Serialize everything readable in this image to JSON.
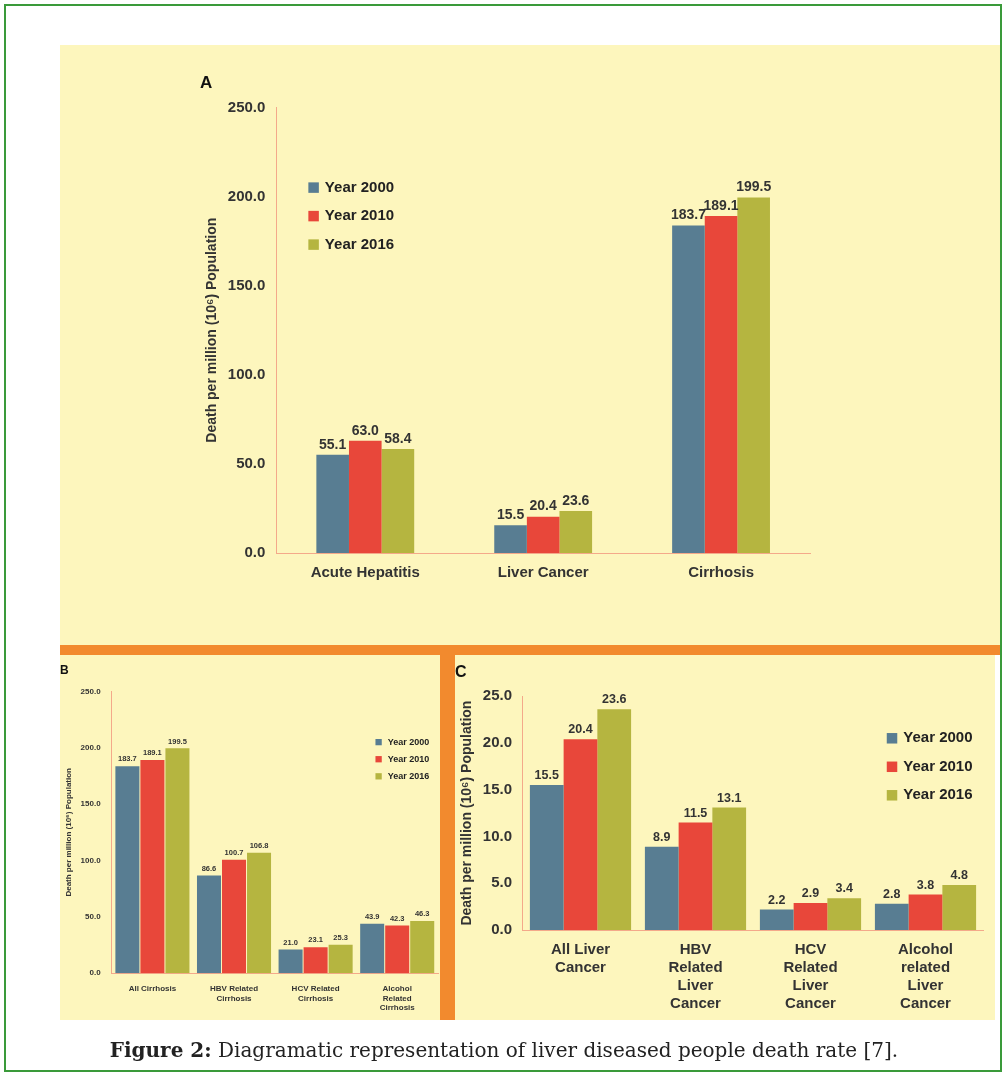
{
  "chart_data": [
    {
      "type": "bar",
      "title": "A",
      "ylabel": "Death per million (10⁶) Population",
      "categories": [
        "Acute Hepatitis",
        "Liver Cancer",
        "Cirrhosis"
      ],
      "series": [
        {
          "name": "Year 2000",
          "color": "#587d92",
          "values": [
            55.1,
            15.5,
            183.7
          ],
          "value_labels": [
            "55.1",
            "15.5",
            "183.7"
          ]
        },
        {
          "name": "Year 2010",
          "color": "#e8473a",
          "values": [
            63.0,
            20.4,
            189.1
          ],
          "value_labels": [
            "63.0",
            "20.4",
            "189.1"
          ]
        },
        {
          "name": "Year 2016",
          "color": "#b5b540",
          "values": [
            58.4,
            23.6,
            199.5
          ],
          "value_labels": [
            "58.4",
            "23.6",
            "199.5"
          ]
        }
      ],
      "ylim": [
        0,
        250
      ],
      "yticks": [
        {
          "value": 0,
          "label": "0.0"
        },
        {
          "value": 50,
          "label": "50.0"
        },
        {
          "value": 100,
          "label": "100.0"
        },
        {
          "value": 150,
          "label": "150.0"
        },
        {
          "value": 200,
          "label": "200.0"
        },
        {
          "value": 250,
          "label": "250.0"
        }
      ],
      "grid": false,
      "legend": "top left"
    },
    {
      "type": "bar",
      "title": "B",
      "ylabel": "Death per million (10⁶) Population",
      "categories": [
        "All Cirrhosis",
        "HBV Related Cirrhosis",
        "HCV Related Cirrhosis",
        "Alcohol Related Cirrhosis"
      ],
      "series": [
        {
          "name": "Year 2000",
          "color": "#587d92",
          "values": [
            183.7,
            86.6,
            21.0,
            43.9
          ],
          "value_labels": [
            "183.7",
            "86.6",
            "21.0",
            "43.9"
          ]
        },
        {
          "name": "Year 2010",
          "color": "#e8473a",
          "values": [
            189.1,
            100.7,
            23.1,
            42.3
          ],
          "value_labels": [
            "189.1",
            "100.7",
            "23.1",
            "42.3"
          ]
        },
        {
          "name": "Year 2016",
          "color": "#b5b540",
          "values": [
            199.5,
            106.8,
            25.3,
            46.3
          ],
          "value_labels": [
            "199.5",
            "106.8",
            "25.3",
            "46.3"
          ]
        }
      ],
      "ylim": [
        0,
        250
      ],
      "yticks": [
        {
          "value": 0,
          "label": "0.0"
        },
        {
          "value": 50,
          "label": "50.0"
        },
        {
          "value": 100,
          "label": "100.0"
        },
        {
          "value": 150,
          "label": "150.0"
        },
        {
          "value": 200,
          "label": "200.0"
        },
        {
          "value": 250,
          "label": "250.0"
        }
      ],
      "grid": false,
      "legend": "top right"
    },
    {
      "type": "bar",
      "title": "C",
      "ylabel": "Death per million (10⁶) Population",
      "categories": [
        "All Liver Cancer",
        "HBV Related Liver Cancer",
        "HCV Related Liver Cancer",
        "Alcohol related Liver Cancer"
      ],
      "series": [
        {
          "name": "Year 2000",
          "color": "#587d92",
          "values": [
            15.5,
            8.9,
            2.2,
            2.8
          ],
          "value_labels": [
            "15.5",
            "8.9",
            "2.2",
            "2.8"
          ]
        },
        {
          "name": "Year 2010",
          "color": "#e8473a",
          "values": [
            20.4,
            11.5,
            2.9,
            3.8
          ],
          "value_labels": [
            "20.4",
            "11.5",
            "2.9",
            "3.8"
          ]
        },
        {
          "name": "Year 2016",
          "color": "#b5b540",
          "values": [
            23.6,
            13.1,
            3.4,
            4.8
          ],
          "value_labels": [
            "23.6",
            "13.1",
            "3.4",
            "4.8"
          ]
        }
      ],
      "ylim": [
        0,
        25
      ],
      "yticks": [
        {
          "value": 0,
          "label": "0.0"
        },
        {
          "value": 5,
          "label": "5.0"
        },
        {
          "value": 10,
          "label": "10.0"
        },
        {
          "value": 15,
          "label": "15.0"
        },
        {
          "value": 20,
          "label": "20.0"
        },
        {
          "value": 25,
          "label": "25.0"
        }
      ],
      "grid": false,
      "legend": "top right",
      "annotations": [
        "Figure 2: Diagramatic representation of liver diseased people death rate [7]."
      ]
    }
  ]
}
